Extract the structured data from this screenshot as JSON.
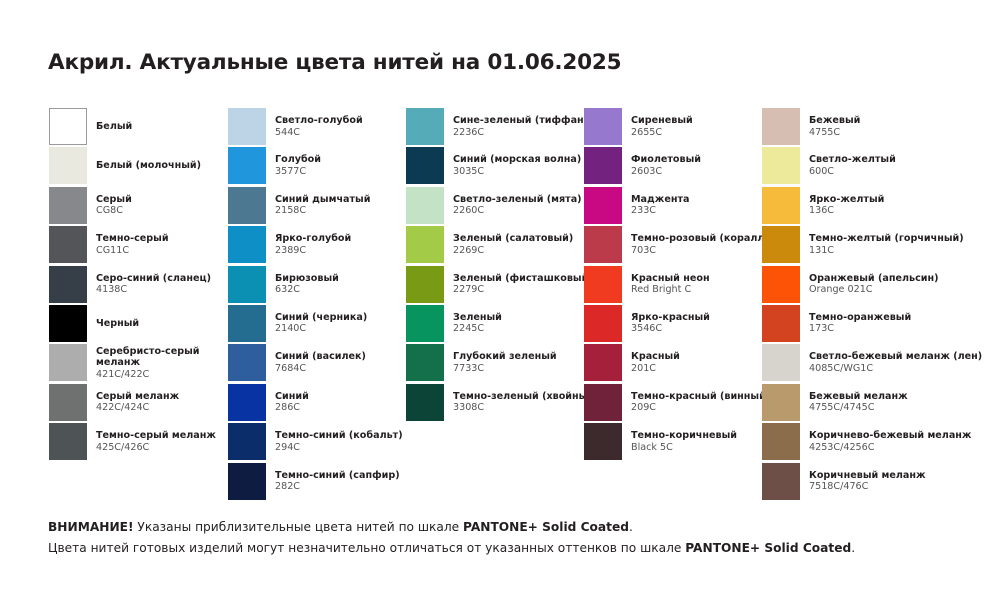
{
  "title": "Акрил. Актуальные цвета нитей на 01.06.2025",
  "columns": [
    [
      {
        "name": "Белый",
        "code": "",
        "color": "#ffffff"
      },
      {
        "name": "Белый (молочный)",
        "code": "",
        "color": "#e9e9df"
      },
      {
        "name": "Серый",
        "code": "CG8C",
        "color": "#87888b"
      },
      {
        "name": "Темно-серый",
        "code": "CG11C",
        "color": "#545559"
      },
      {
        "name": "Серо-синий (сланец)",
        "code": "4138C",
        "color": "#363f48"
      },
      {
        "name": "Черный",
        "code": "",
        "color": "#000000"
      },
      {
        "name": "Серебристо-серый меланж",
        "code": "421C/422C",
        "color": "#acadac"
      },
      {
        "name": "Серый меланж",
        "code": "422C/424C",
        "color": "#6f7070"
      },
      {
        "name": "Темно-серый меланж",
        "code": "425C/426C",
        "color": "#4e5356"
      }
    ],
    [
      {
        "name": "Светло-голубой",
        "code": "544C",
        "color": "#bcd4e6"
      },
      {
        "name": "Голубой",
        "code": "3577C",
        "color": "#2097dc"
      },
      {
        "name": "Синий дымчатый",
        "code": "2158C",
        "color": "#4c7891"
      },
      {
        "name": "Ярко-голубой",
        "code": "2389C",
        "color": "#0e8fc6"
      },
      {
        "name": "Бирюзовый",
        "code": "632C",
        "color": "#0b8fb3"
      },
      {
        "name": "Синий (черника)",
        "code": "2140C",
        "color": "#246c90"
      },
      {
        "name": "Синий (василек)",
        "code": "7684C",
        "color": "#2f5e9f"
      },
      {
        "name": "Синий",
        "code": "286C",
        "color": "#0733a3"
      },
      {
        "name": "Темно-синий (кобальт)",
        "code": "294C",
        "color": "#0b2e6b"
      },
      {
        "name": "Темно-синий (сапфир)",
        "code": "282C",
        "color": "#0d1c40"
      }
    ],
    [
      {
        "name": "Сине-зеленый (тиффани)",
        "code": "2236C",
        "color": "#56abb8"
      },
      {
        "name": "Синий (морская волна)",
        "code": "3035C",
        "color": "#0c3a52"
      },
      {
        "name": "Светло-зеленый (мята)",
        "code": "2260C",
        "color": "#c4e2c6"
      },
      {
        "name": "Зеленый (салатовый)",
        "code": "2269C",
        "color": "#a4cb48"
      },
      {
        "name": "Зеленый (фисташковый)",
        "code": "2279C",
        "color": "#789a15"
      },
      {
        "name": "Зеленый",
        "code": "2245C",
        "color": "#07945e"
      },
      {
        "name": "Глубокий зеленый",
        "code": "7733C",
        "color": "#13704a"
      },
      {
        "name": "Темно-зеленый (хвойный)",
        "code": "3308C",
        "color": "#0c4538"
      }
    ],
    [
      {
        "name": "Сиреневый",
        "code": "2655C",
        "color": "#9679cf"
      },
      {
        "name": "Фиолетовый",
        "code": "2603C",
        "color": "#74227f"
      },
      {
        "name": "Маджента",
        "code": "233C",
        "color": "#c90883"
      },
      {
        "name": "Темно-розовый (коралл)",
        "code": "703C",
        "color": "#bc3b4b"
      },
      {
        "name": "Красный неон",
        "code": "Red Bright C",
        "color": "#f13b21"
      },
      {
        "name": "Ярко-красный",
        "code": "3546C",
        "color": "#dc2826"
      },
      {
        "name": "Красный",
        "code": "201C",
        "color": "#a5203a"
      },
      {
        "name": "Темно-красный (винный)",
        "code": "209C",
        "color": "#70223b"
      },
      {
        "name": "Темно-коричневый",
        "code": "Black 5C",
        "color": "#3c2a2d"
      }
    ],
    [
      {
        "name": "Бежевый",
        "code": "4755C",
        "color": "#d6beb2"
      },
      {
        "name": "Светло-желтый",
        "code": "600C",
        "color": "#eeea9c"
      },
      {
        "name": "Ярко-желтый",
        "code": "136C",
        "color": "#f6bb3b"
      },
      {
        "name": "Темно-желтый (горчичный)",
        "code": "131C",
        "color": "#cc8a0d"
      },
      {
        "name": "Оранжевый (апельсин)",
        "code": "Orange 021C",
        "color": "#fd5307"
      },
      {
        "name": "Темно-оранжевый",
        "code": "173C",
        "color": "#d3431f"
      },
      {
        "name": "Светло-бежевый меланж (лен)",
        "code": "4085C/WG1C",
        "color": "#d7d3cd"
      },
      {
        "name": "Бежевый меланж",
        "code": "4755C/4745C",
        "color": "#b99a6c"
      },
      {
        "name": "Коричнево-бежевый меланж",
        "code": "4253C/4256C",
        "color": "#8b6c4b"
      },
      {
        "name": "Коричневый меланж",
        "code": "7518C/476C",
        "color": "#6d4f48"
      }
    ]
  ],
  "footer": {
    "line1_bold": "ВНИМАНИЕ!",
    "line1_text": " Указаны приблизительные цвета нитей по шкале ",
    "line1_scale": "PANTONE+ Solid Coated",
    "line1_end": ".",
    "line2_text": "Цвета нитей готовых изделий могут незначительно отличаться от указанных оттенков по шкале ",
    "line2_scale": "PANTONE+ Solid Coated",
    "line2_end": "."
  }
}
